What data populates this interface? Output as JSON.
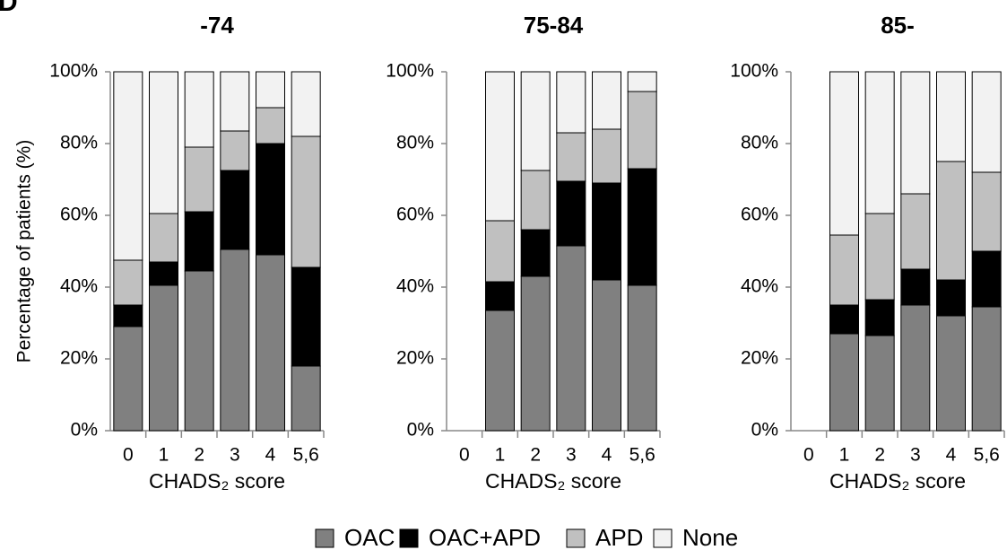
{
  "panel_label": "D",
  "y_label": "Percentage of patients (%)",
  "chart_data": [
    {
      "type": "stacked_bar",
      "title": "-74",
      "x_label": "CHADS₂ score",
      "categories": [
        "0",
        "1",
        "2",
        "3",
        "4",
        "5,6"
      ],
      "series": [
        {
          "name": "OAC",
          "color": "#808080",
          "values": [
            29,
            40.5,
            44.5,
            50.5,
            49,
            18
          ]
        },
        {
          "name": "OAC+APD",
          "color": "#000000",
          "values": [
            6,
            6.5,
            16.5,
            22,
            31,
            27.5
          ]
        },
        {
          "name": "APD",
          "color": "#c0c0c0",
          "values": [
            12.5,
            13.5,
            18,
            11,
            10,
            36.5
          ]
        },
        {
          "name": "None",
          "color": "#f2f2f2",
          "values": [
            52.5,
            39.5,
            21,
            16.5,
            10,
            18
          ]
        }
      ],
      "ylim": [
        0,
        100
      ],
      "yticks": [
        {
          "value": 0,
          "label": "0%"
        },
        {
          "value": 20,
          "label": "20%"
        },
        {
          "value": 40,
          "label": "40%"
        },
        {
          "value": 60,
          "label": "60%"
        },
        {
          "value": 80,
          "label": "80%"
        },
        {
          "value": 100,
          "label": "100%"
        }
      ]
    },
    {
      "type": "stacked_bar",
      "title": "75-84",
      "x_label": "CHADS₂ score",
      "categories": [
        "0",
        "1",
        "2",
        "3",
        "4",
        "5,6"
      ],
      "series": [
        {
          "name": "OAC",
          "color": "#808080",
          "values": [
            null,
            33.5,
            43,
            51.5,
            42,
            40.5
          ]
        },
        {
          "name": "OAC+APD",
          "color": "#000000",
          "values": [
            null,
            8,
            13,
            18,
            27,
            32.5
          ]
        },
        {
          "name": "APD",
          "color": "#c0c0c0",
          "values": [
            null,
            17,
            16.5,
            13.5,
            15,
            21.5
          ]
        },
        {
          "name": "None",
          "color": "#f2f2f2",
          "values": [
            null,
            41.5,
            27.5,
            17,
            16,
            5.5
          ]
        }
      ],
      "ylim": [
        0,
        100
      ],
      "yticks": [
        {
          "value": 0,
          "label": "0%"
        },
        {
          "value": 20,
          "label": "20%"
        },
        {
          "value": 40,
          "label": "40%"
        },
        {
          "value": 60,
          "label": "60%"
        },
        {
          "value": 80,
          "label": "80%"
        },
        {
          "value": 100,
          "label": "100%"
        }
      ]
    },
    {
      "type": "stacked_bar",
      "title": "85-",
      "x_label": "CHADS₂ score",
      "categories": [
        "0",
        "1",
        "2",
        "3",
        "4",
        "5,6"
      ],
      "series": [
        {
          "name": "OAC",
          "color": "#808080",
          "values": [
            null,
            27,
            26.5,
            35,
            32,
            34.5
          ]
        },
        {
          "name": "OAC+APD",
          "color": "#000000",
          "values": [
            null,
            8,
            10,
            10,
            10,
            15.5
          ]
        },
        {
          "name": "APD",
          "color": "#c0c0c0",
          "values": [
            null,
            19.5,
            24,
            21,
            33,
            22
          ]
        },
        {
          "name": "None",
          "color": "#f2f2f2",
          "values": [
            null,
            45.5,
            39.5,
            34,
            25,
            28
          ]
        }
      ],
      "ylim": [
        0,
        100
      ],
      "yticks": [
        {
          "value": 0,
          "label": "0%"
        },
        {
          "value": 20,
          "label": "20%"
        },
        {
          "value": 40,
          "label": "40%"
        },
        {
          "value": 60,
          "label": "60%"
        },
        {
          "value": 80,
          "label": "80%"
        },
        {
          "value": 100,
          "label": "100%"
        }
      ]
    }
  ]
}
